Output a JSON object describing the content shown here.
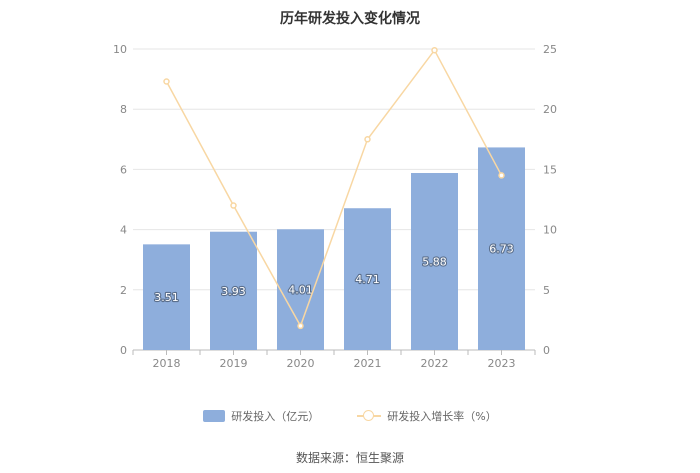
{
  "chart_data": {
    "type": "bar",
    "title": "历年研发投入变化情况",
    "categories": [
      "2018",
      "2019",
      "2020",
      "2021",
      "2022",
      "2023"
    ],
    "series": [
      {
        "name": "研发投入（亿元）",
        "type": "bar",
        "axis": "left",
        "values": [
          3.51,
          3.93,
          4.01,
          4.71,
          5.88,
          6.73
        ],
        "data_labels": [
          "3.51",
          "3.93",
          "4.01",
          "4.71",
          "5.88",
          "6.73"
        ],
        "color": "#8eaedc"
      },
      {
        "name": "研发投入增长率（%）",
        "type": "line",
        "axis": "right",
        "values": [
          22.3,
          12.0,
          2.0,
          17.5,
          24.9,
          14.5
        ],
        "color": "#f8d7a3"
      }
    ],
    "y_left": {
      "range": [
        0,
        10
      ],
      "ticks": [
        0,
        2,
        4,
        6,
        8,
        10
      ]
    },
    "y_right": {
      "range": [
        0,
        25
      ],
      "ticks": [
        0,
        5,
        10,
        15,
        20,
        25
      ]
    },
    "grid": true,
    "legend_position": "bottom"
  },
  "source": "数据来源：恒生聚源"
}
